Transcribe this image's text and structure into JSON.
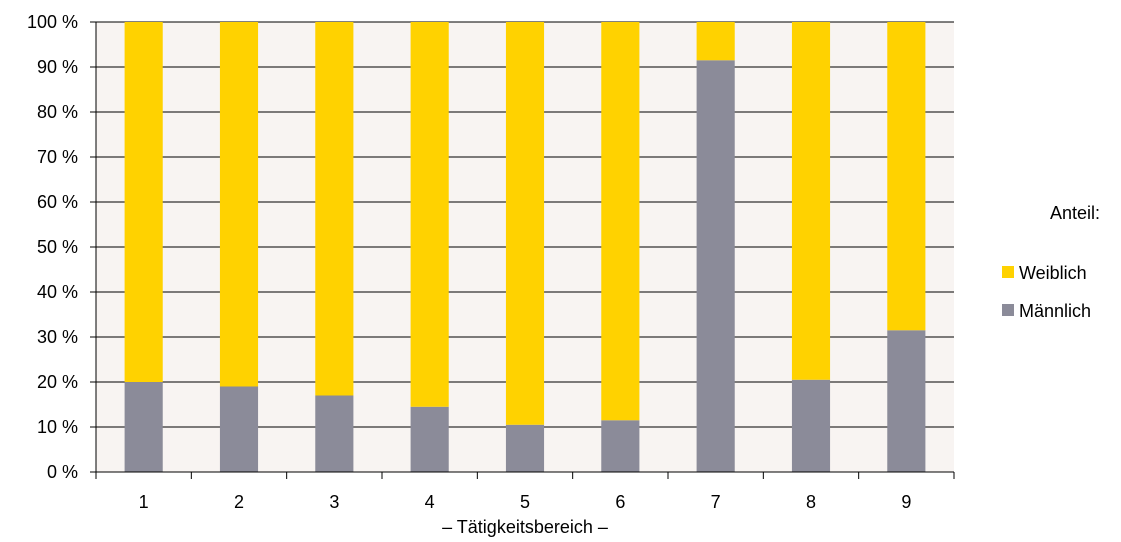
{
  "chart_data": {
    "type": "bar",
    "stacked": true,
    "categories": [
      "1",
      "2",
      "3",
      "4",
      "5",
      "6",
      "7",
      "8",
      "9"
    ],
    "series": [
      {
        "name": "Männlich",
        "color": "#8b8b99",
        "values": [
          20,
          19,
          17,
          14.5,
          10.5,
          11.5,
          91.5,
          20.5,
          31.5
        ]
      },
      {
        "name": "Weiblich",
        "color": "#ffd200",
        "values": [
          80,
          81,
          83,
          85.5,
          89.5,
          88.5,
          8.5,
          79.5,
          68.5
        ]
      }
    ],
    "y_ticks": [
      "0 %",
      "10 %",
      "20 %",
      "30 %",
      "40 %",
      "50 %",
      "60 %",
      "70 %",
      "80 %",
      "90 %",
      "100 %"
    ],
    "ylim": [
      0,
      100
    ],
    "xlabel": "– Tätigkeitsbereich –",
    "grid": true,
    "legend": {
      "title": "Anteil:",
      "placement": "right",
      "order": [
        "Weiblich",
        "Männlich"
      ]
    },
    "plot_background": "#f8f4f2"
  }
}
